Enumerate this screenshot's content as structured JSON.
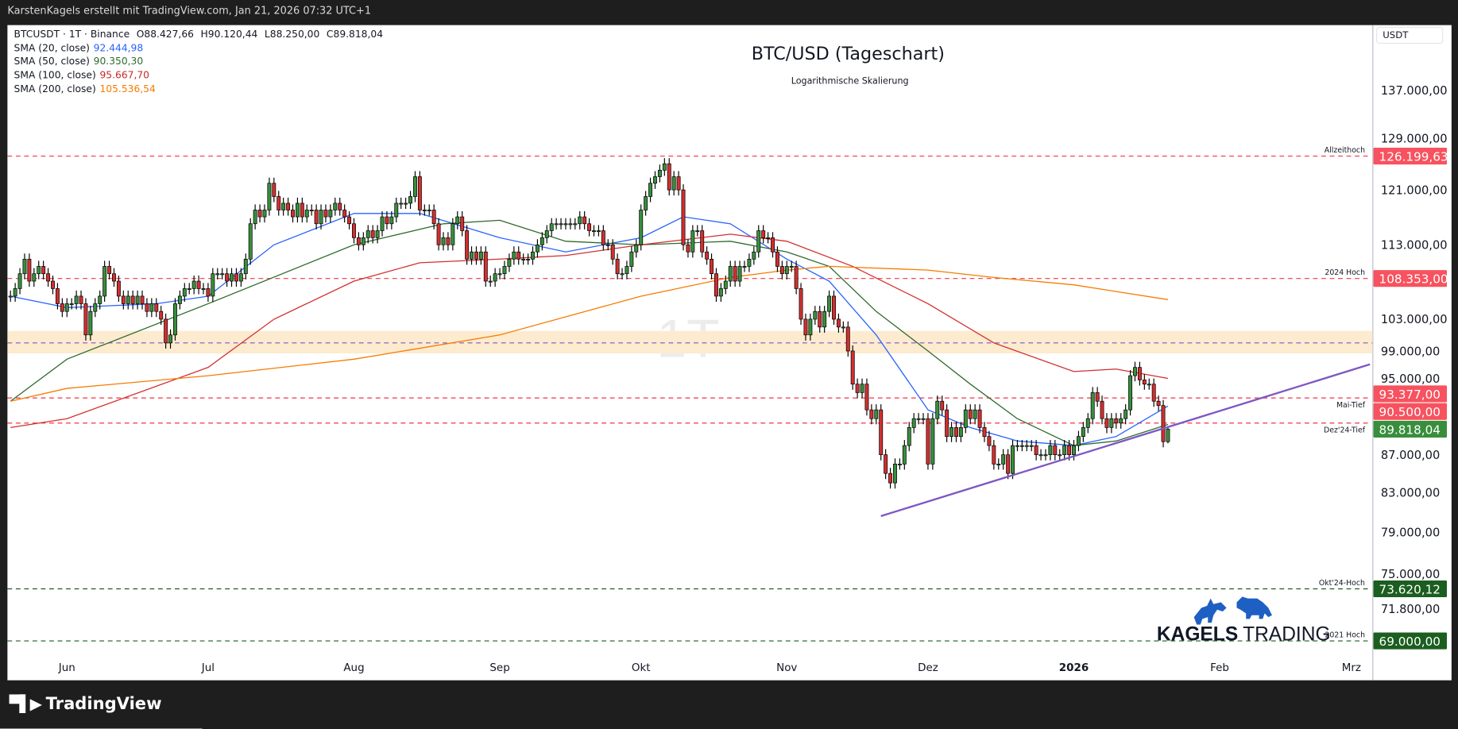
{
  "header": {
    "attribution": "KarstenKagels erstellt mit TradingView.com, Jan 21, 2026 07:32 UTC+1"
  },
  "legend": {
    "symbol_line": "BTCUSDT · 1T · Binance",
    "open": "O88.427,66",
    "high": "H90.120,44",
    "low": "L88.250,00",
    "close": "C89.818,04",
    "sma": [
      {
        "label": "SMA (20, close)",
        "value": "92.444,98",
        "color": "#2962ff"
      },
      {
        "label": "SMA (50, close)",
        "value": "90.350,30",
        "color": "#2e6b2e"
      },
      {
        "label": "SMA (100, close)",
        "value": "95.667,70",
        "color": "#c62828"
      },
      {
        "label": "SMA (200, close)",
        "value": "105.536,54",
        "color": "#f57c00"
      }
    ]
  },
  "axis": {
    "currency": "USDT"
  },
  "watermark": "1T",
  "branding": {
    "logo_word1": "KAGELS",
    "logo_word2": "TRADING",
    "tradingview": "TradingView"
  },
  "chart_data": {
    "type": "candlestick",
    "title": "BTC/USD (Tageschart)",
    "subtitle": "Logarithmische Skalierung",
    "scale": "log",
    "start_date": "2025-05-20",
    "closes_k": [
      106,
      107,
      109,
      111,
      108,
      109,
      110,
      109,
      108,
      107,
      105,
      104,
      105,
      105,
      106,
      105,
      101,
      104,
      105,
      106,
      110,
      109,
      108,
      106,
      105,
      106,
      105,
      106,
      105,
      104,
      105,
      104,
      103,
      100,
      101,
      105,
      106,
      107,
      107,
      108,
      107,
      107,
      106,
      109,
      109,
      109,
      108,
      109,
      108,
      109,
      111,
      116,
      118,
      117,
      118,
      122,
      120,
      118,
      119,
      118,
      117,
      119,
      117,
      118,
      118,
      116,
      118,
      117,
      118,
      119,
      118,
      117,
      116,
      114,
      113,
      114,
      115,
      114,
      115,
      117,
      116,
      117,
      119,
      119,
      119,
      120,
      123,
      118,
      118,
      118,
      116,
      113,
      114,
      113,
      116,
      117,
      115,
      111,
      112,
      111,
      112,
      108,
      108,
      109,
      109,
      110,
      111,
      112,
      111,
      111,
      111,
      112,
      113,
      114,
      115,
      116,
      116,
      116,
      116,
      116,
      116,
      117,
      116,
      115,
      115,
      115,
      113,
      113,
      111,
      109,
      109,
      110,
      112,
      113,
      118,
      120,
      122,
      123,
      124,
      125,
      121,
      123,
      121,
      113,
      112,
      115,
      115,
      112,
      111,
      109,
      106,
      107,
      108,
      110,
      108,
      110,
      110,
      111,
      112,
      115,
      114,
      114,
      112,
      110,
      109,
      110,
      110,
      107,
      103,
      101,
      103,
      104,
      102,
      104,
      106,
      103,
      102,
      102,
      99,
      95,
      94,
      95,
      92,
      91,
      92,
      87,
      85,
      84,
      86,
      86,
      88,
      90,
      91,
      91,
      91,
      86,
      91,
      93,
      92,
      89,
      90,
      89,
      90,
      92,
      91,
      92,
      90,
      89,
      88,
      86,
      86,
      87,
      85,
      88,
      88,
      88,
      88,
      88,
      87,
      87,
      87,
      88,
      87,
      87,
      88,
      87,
      88,
      89,
      90,
      91,
      94,
      93,
      91,
      90,
      91,
      90.5,
      91,
      92,
      96,
      97,
      95.5,
      95,
      95,
      93,
      92.5,
      88.43,
      89.818
    ],
    "last_candle": {
      "open": 88427.66,
      "high": 90120.44,
      "low": 88250.0,
      "close": 89818.04
    },
    "sma_series": [
      {
        "name": "SMA 20",
        "color": "#2962ff",
        "points": [
          [
            "2025-05-20",
            106
          ],
          [
            "2025-06-01",
            104.5
          ],
          [
            "2025-06-20",
            105
          ],
          [
            "2025-07-01",
            106
          ],
          [
            "2025-07-15",
            113
          ],
          [
            "2025-08-01",
            117.5
          ],
          [
            "2025-08-15",
            117.5
          ],
          [
            "2025-09-01",
            114
          ],
          [
            "2025-09-15",
            112
          ],
          [
            "2025-10-01",
            114
          ],
          [
            "2025-10-10",
            117
          ],
          [
            "2025-10-20",
            116
          ],
          [
            "2025-11-01",
            111
          ],
          [
            "2025-11-10",
            108
          ],
          [
            "2025-11-20",
            101
          ],
          [
            "2025-12-01",
            92
          ],
          [
            "2025-12-10",
            90
          ],
          [
            "2025-12-20",
            88.5
          ],
          [
            "2026-01-01",
            88
          ],
          [
            "2026-01-10",
            89
          ],
          [
            "2026-01-21",
            92.44
          ]
        ]
      },
      {
        "name": "SMA 50",
        "color": "#2e6b2e",
        "points": [
          [
            "2025-05-20",
            93
          ],
          [
            "2025-06-01",
            98
          ],
          [
            "2025-07-01",
            105
          ],
          [
            "2025-08-01",
            113
          ],
          [
            "2025-08-20",
            116
          ],
          [
            "2025-09-01",
            116.5
          ],
          [
            "2025-09-15",
            113.5
          ],
          [
            "2025-10-01",
            113
          ],
          [
            "2025-10-20",
            113.5
          ],
          [
            "2025-11-01",
            112
          ],
          [
            "2025-11-10",
            110
          ],
          [
            "2025-11-20",
            104
          ],
          [
            "2025-12-01",
            99
          ],
          [
            "2025-12-10",
            95
          ],
          [
            "2025-12-20",
            91
          ],
          [
            "2026-01-01",
            88
          ],
          [
            "2026-01-10",
            88.5
          ],
          [
            "2026-01-21",
            90.35
          ]
        ]
      },
      {
        "name": "SMA 100",
        "color": "#d32f2f",
        "points": [
          [
            "2025-05-20",
            90
          ],
          [
            "2025-06-01",
            91
          ],
          [
            "2025-07-01",
            97
          ],
          [
            "2025-07-15",
            103
          ],
          [
            "2025-08-01",
            108
          ],
          [
            "2025-08-15",
            110.5
          ],
          [
            "2025-09-01",
            111
          ],
          [
            "2025-09-15",
            111.5
          ],
          [
            "2025-10-01",
            113
          ],
          [
            "2025-10-20",
            114.5
          ],
          [
            "2025-11-01",
            113.5
          ],
          [
            "2025-11-15",
            110
          ],
          [
            "2025-12-01",
            105
          ],
          [
            "2025-12-15",
            100
          ],
          [
            "2026-01-01",
            96.5
          ],
          [
            "2026-01-10",
            96.8
          ],
          [
            "2026-01-21",
            95.67
          ]
        ]
      },
      {
        "name": "SMA 200",
        "color": "#f57c00",
        "points": [
          [
            "2025-05-20",
            93
          ],
          [
            "2025-06-01",
            94.5
          ],
          [
            "2025-07-01",
            96
          ],
          [
            "2025-08-01",
            98
          ],
          [
            "2025-09-01",
            101
          ],
          [
            "2025-10-01",
            106
          ],
          [
            "2025-10-20",
            108.5
          ],
          [
            "2025-11-01",
            109.5
          ],
          [
            "2025-11-10",
            110
          ],
          [
            "2025-12-01",
            109.5
          ],
          [
            "2025-12-15",
            108.5
          ],
          [
            "2026-01-01",
            107.5
          ],
          [
            "2026-01-21",
            105.54
          ]
        ]
      }
    ],
    "levels": [
      {
        "value": 126199.63,
        "label": "Allzeithoch",
        "badge": "126.199,63",
        "color": "#f23645",
        "badge_color": "#f7525f"
      },
      {
        "value": 108353,
        "label": "2024 Hoch",
        "badge": "108.353,00",
        "color": "#f23645",
        "badge_color": "#f7525f"
      },
      {
        "value": 93377,
        "label": "Mai-Tief",
        "badge": "93.377,00",
        "color": "#f23645",
        "badge_color": "#f7525f"
      },
      {
        "value": 90500,
        "label": "Dez'24-Tief",
        "badge": "90.500,00",
        "color": "#f23645",
        "badge_color": "#f7525f"
      },
      {
        "value": 73620.12,
        "label": "Okt'24-Hoch",
        "badge": "73.620,12",
        "color": "#1b5e20",
        "badge_color": "#1b5e20"
      },
      {
        "value": 69000,
        "label": "2021 Hoch",
        "badge": "69.000,00",
        "color": "#1b5e20",
        "badge_color": "#1b5e20"
      }
    ],
    "current_price": {
      "value": 89818.04,
      "badge": "89.818,04",
      "color": "#388e3c"
    },
    "zone": {
      "low": 98700,
      "high": 101500,
      "mid": 100000,
      "fill": "#fdebd0",
      "line_color": "#7e57c2"
    },
    "trendline": {
      "from": [
        "2025-11-21",
        80600
      ],
      "to": [
        "2026-02-28",
        96500
      ],
      "color": "#7e57c2"
    },
    "y_ticks": [
      {
        "value": 137000,
        "label": "137.000,00"
      },
      {
        "value": 129000,
        "label": "129.000,00"
      },
      {
        "value": 121000,
        "label": "121.000,00"
      },
      {
        "value": 113000,
        "label": "113.000,00"
      },
      {
        "value": 103000,
        "label": "103.000,00"
      },
      {
        "value": 99000,
        "label": "99.000,00"
      },
      {
        "value": 95000,
        "label": "95.000,00"
      },
      {
        "value": 87000,
        "label": "87.000,00"
      },
      {
        "value": 83000,
        "label": "83.000,00"
      },
      {
        "value": 79000,
        "label": "79.000,00"
      },
      {
        "value": 75000,
        "label": "75.000,00"
      },
      {
        "value": 71800,
        "label": "71.800,00"
      }
    ],
    "x_ticks": [
      {
        "label": "Jun",
        "date": "2025-06-01"
      },
      {
        "label": "Jul",
        "date": "2025-07-01"
      },
      {
        "label": "Aug",
        "date": "2025-08-01"
      },
      {
        "label": "Sep",
        "date": "2025-09-01"
      },
      {
        "label": "Okt",
        "date": "2025-10-01"
      },
      {
        "label": "Nov",
        "date": "2025-11-01"
      },
      {
        "label": "Dez",
        "date": "2025-12-01"
      },
      {
        "label": "2026",
        "date": "2026-01-01",
        "bold": true
      },
      {
        "label": "Feb",
        "date": "2026-02-01"
      },
      {
        "label": "Mrz",
        "date": "2026-03-01"
      }
    ],
    "colors": {
      "up": "#388e3c",
      "down": "#d32f2f",
      "wick": "#000000"
    }
  }
}
